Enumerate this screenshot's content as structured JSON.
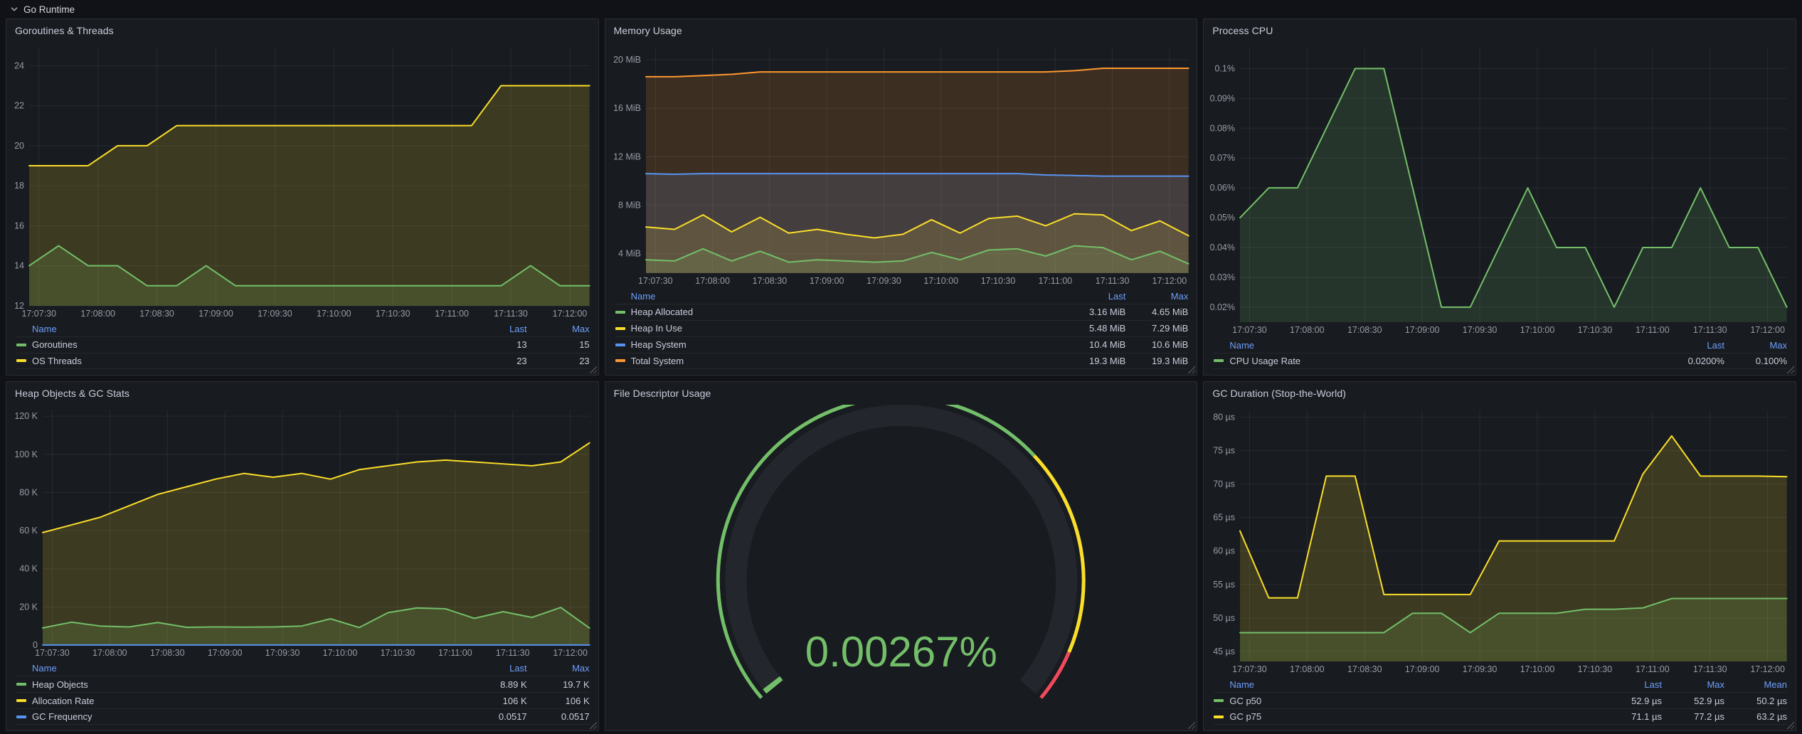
{
  "row": {
    "title": "Go Runtime"
  },
  "legend": {
    "name_header": "Name"
  },
  "colors": {
    "green": "#73bf69",
    "yellow": "#fade2a",
    "blue": "#5794f2",
    "orange": "#ff9830",
    "red": "#f2495c",
    "axis_text": "rgba(204,204,220,0.72)",
    "grid": "rgba(204,204,220,0.09)",
    "legend_header": "#6e9fff",
    "gauge_track": "#24262d",
    "panel_bg": "#181b1f",
    "page_bg": "#111217"
  },
  "panels": [
    {
      "title": "Goroutines & Threads",
      "legend_columns": [
        "Last",
        "Max"
      ],
      "chart_data": {
        "type": "line",
        "x_ticks": [
          "17:07:30",
          "17:08:00",
          "17:08:30",
          "17:09:00",
          "17:09:30",
          "17:10:00",
          "17:10:30",
          "17:11:00",
          "17:11:30",
          "17:12:00"
        ],
        "ylim": [
          12,
          24.9
        ],
        "yticks": [
          {
            "v": 12,
            "label": "12"
          },
          {
            "v": 14,
            "label": "14"
          },
          {
            "v": 16,
            "label": "16"
          },
          {
            "v": 18,
            "label": "18"
          },
          {
            "v": 20,
            "label": "20"
          },
          {
            "v": 22,
            "label": "22"
          },
          {
            "v": 24,
            "label": "24"
          }
        ],
        "series": [
          {
            "name": "Goroutines",
            "color": "green",
            "values": [
              14,
              15,
              14,
              14,
              13,
              13,
              14,
              13,
              13,
              13,
              13,
              13,
              13,
              13,
              13,
              13,
              13,
              14,
              13,
              13
            ],
            "legend_values": [
              "13",
              "15"
            ]
          },
          {
            "name": "OS Threads",
            "color": "yellow",
            "values": [
              19,
              19,
              19,
              20,
              20,
              21,
              21,
              21,
              21,
              21,
              21,
              21,
              21,
              21,
              21,
              21,
              23,
              23,
              23,
              23
            ],
            "legend_values": [
              "23",
              "23"
            ]
          }
        ]
      }
    },
    {
      "title": "Memory Usage",
      "legend_columns": [
        "Last",
        "Max"
      ],
      "chart_data": {
        "type": "line",
        "x_ticks": [
          "17:07:30",
          "17:08:00",
          "17:08:30",
          "17:09:00",
          "17:09:30",
          "17:10:00",
          "17:10:30",
          "17:11:00",
          "17:11:30",
          "17:12:00"
        ],
        "ylim": [
          2.4,
          21
        ],
        "yticks": [
          {
            "v": 4,
            "label": "4 MiB"
          },
          {
            "v": 8,
            "label": "8 MiB"
          },
          {
            "v": 12,
            "label": "12 MiB"
          },
          {
            "v": 16,
            "label": "16 MiB"
          },
          {
            "v": 20,
            "label": "20 MiB"
          }
        ],
        "series": [
          {
            "name": "Heap Allocated",
            "color": "green",
            "values": [
              3.5,
              3.4,
              4.4,
              3.4,
              4.2,
              3.3,
              3.5,
              3.4,
              3.3,
              3.4,
              4.1,
              3.5,
              4.3,
              4.4,
              3.8,
              4.65,
              4.5,
              3.5,
              4.2,
              3.16
            ],
            "legend_values": [
              "3.16 MiB",
              "4.65 MiB"
            ]
          },
          {
            "name": "Heap In Use",
            "color": "yellow",
            "values": [
              6.2,
              6.0,
              7.2,
              5.8,
              7.0,
              5.7,
              6.0,
              5.6,
              5.3,
              5.6,
              6.8,
              5.7,
              6.9,
              7.1,
              6.3,
              7.29,
              7.2,
              5.9,
              6.7,
              5.48
            ],
            "legend_values": [
              "5.48 MiB",
              "7.29 MiB"
            ]
          },
          {
            "name": "Heap System",
            "color": "blue",
            "values": [
              10.6,
              10.55,
              10.6,
              10.6,
              10.6,
              10.6,
              10.6,
              10.6,
              10.6,
              10.6,
              10.6,
              10.6,
              10.6,
              10.6,
              10.5,
              10.45,
              10.4,
              10.4,
              10.4,
              10.4
            ],
            "legend_values": [
              "10.4 MiB",
              "10.6 MiB"
            ]
          },
          {
            "name": "Total System",
            "color": "orange",
            "values": [
              18.6,
              18.6,
              18.7,
              18.8,
              19.0,
              19.0,
              19.0,
              19.0,
              19.0,
              19.0,
              19.0,
              19.0,
              19.0,
              19.0,
              19.0,
              19.1,
              19.3,
              19.3,
              19.3,
              19.3
            ],
            "legend_values": [
              "19.3 MiB",
              "19.3 MiB"
            ]
          }
        ]
      }
    },
    {
      "title": "Process CPU",
      "legend_columns": [
        "Last",
        "Max"
      ],
      "chart_data": {
        "type": "line",
        "x_ticks": [
          "17:07:30",
          "17:08:00",
          "17:08:30",
          "17:09:00",
          "17:09:30",
          "17:10:00",
          "17:10:30",
          "17:11:00",
          "17:11:30",
          "17:12:00"
        ],
        "ylim": [
          0.015,
          0.107
        ],
        "yticks": [
          {
            "v": 0.02,
            "label": "0.02%"
          },
          {
            "v": 0.03,
            "label": "0.03%"
          },
          {
            "v": 0.04,
            "label": "0.04%"
          },
          {
            "v": 0.05,
            "label": "0.05%"
          },
          {
            "v": 0.06,
            "label": "0.06%"
          },
          {
            "v": 0.07,
            "label": "0.07%"
          },
          {
            "v": 0.08,
            "label": "0.08%"
          },
          {
            "v": 0.09,
            "label": "0.09%"
          },
          {
            "v": 0.1,
            "label": "0.1%"
          }
        ],
        "series": [
          {
            "name": "CPU Usage Rate",
            "color": "green",
            "values": [
              0.05,
              0.06,
              0.06,
              0.08,
              0.1,
              0.1,
              0.06,
              0.02,
              0.02,
              0.04,
              0.06,
              0.04,
              0.04,
              0.02,
              0.04,
              0.04,
              0.06,
              0.04,
              0.04,
              0.02
            ],
            "legend_values": [
              "0.0200%",
              "0.100%"
            ]
          }
        ]
      }
    },
    {
      "title": "Heap Objects & GC Stats",
      "legend_columns": [
        "Last",
        "Max"
      ],
      "chart_data": {
        "type": "line",
        "x_ticks": [
          "17:07:30",
          "17:08:00",
          "17:08:30",
          "17:09:00",
          "17:09:30",
          "17:10:00",
          "17:10:30",
          "17:11:00",
          "17:11:30",
          "17:12:00"
        ],
        "ylim": [
          0,
          123
        ],
        "yticks": [
          {
            "v": 0,
            "label": "0"
          },
          {
            "v": 20,
            "label": "20 K"
          },
          {
            "v": 40,
            "label": "40 K"
          },
          {
            "v": 60,
            "label": "60 K"
          },
          {
            "v": 80,
            "label": "80 K"
          },
          {
            "v": 100,
            "label": "100 K"
          },
          {
            "v": 120,
            "label": "120 K"
          }
        ],
        "series": [
          {
            "name": "Heap Objects",
            "color": "green",
            "values": [
              9,
              12,
              10,
              9.5,
              11.8,
              9.3,
              9.5,
              9.4,
              9.5,
              10,
              13.8,
              9.2,
              17,
              19.5,
              19,
              14,
              17.5,
              14.5,
              19.7,
              8.89
            ],
            "legend_values": [
              "8.89 K",
              "19.7 K"
            ]
          },
          {
            "name": "Allocation Rate",
            "color": "yellow",
            "values": [
              59,
              63,
              67,
              73,
              79,
              83,
              87,
              90,
              88,
              90,
              87,
              92,
              94,
              96,
              97,
              96,
              95,
              94,
              96,
              106
            ],
            "legend_values": [
              "106 K",
              "106 K"
            ]
          },
          {
            "name": "GC Frequency",
            "color": "blue",
            "values": [
              0.05,
              0.05,
              0.05,
              0.05,
              0.05,
              0.05,
              0.05,
              0.05,
              0.05,
              0.05,
              0.05,
              0.05,
              0.05,
              0.05,
              0.05,
              0.05,
              0.05,
              0.05,
              0.05,
              0.05
            ],
            "legend_values": [
              "0.0517",
              "0.0517"
            ]
          }
        ]
      }
    },
    {
      "title": "File Descriptor Usage",
      "legend_columns": [],
      "chart_data": {
        "type": "gauge",
        "value_label": "0.00267%",
        "value_percent": 0.00267,
        "min": 0,
        "max": 100,
        "value_color": "green",
        "thresholds": [
          {
            "color": "green",
            "from_frac": 0
          },
          {
            "color": "yellow",
            "from_frac": 0.68
          },
          {
            "color": "red",
            "from_frac": 0.935
          }
        ]
      }
    },
    {
      "title": "GC Duration (Stop-the-World)",
      "legend_columns": [
        "Last",
        "Max",
        "Mean"
      ],
      "chart_data": {
        "type": "line",
        "x_ticks": [
          "17:07:30",
          "17:08:00",
          "17:08:30",
          "17:09:00",
          "17:09:30",
          "17:10:00",
          "17:10:30",
          "17:11:00",
          "17:11:30",
          "17:12:00"
        ],
        "ylim": [
          43.5,
          81
        ],
        "yticks": [
          {
            "v": 45,
            "label": "45 µs"
          },
          {
            "v": 50,
            "label": "50 µs"
          },
          {
            "v": 55,
            "label": "55 µs"
          },
          {
            "v": 60,
            "label": "60 µs"
          },
          {
            "v": 65,
            "label": "65 µs"
          },
          {
            "v": 70,
            "label": "70 µs"
          },
          {
            "v": 75,
            "label": "75 µs"
          },
          {
            "v": 80,
            "label": "80 µs"
          }
        ],
        "series": [
          {
            "name": "GC p50",
            "color": "green",
            "values": [
              47.8,
              47.8,
              47.8,
              47.8,
              47.8,
              47.8,
              50.7,
              50.7,
              47.8,
              50.7,
              50.7,
              50.7,
              51.3,
              51.3,
              51.5,
              52.9,
              52.9,
              52.9,
              52.9,
              52.9
            ],
            "legend_values": [
              "52.9 µs",
              "52.9 µs",
              "50.2 µs"
            ]
          },
          {
            "name": "GC p75",
            "color": "yellow",
            "values": [
              63,
              53,
              53,
              71.2,
              71.2,
              53.5,
              53.5,
              53.5,
              53.5,
              61.5,
              61.5,
              61.5,
              61.5,
              61.5,
              71.5,
              77.2,
              71.2,
              71.2,
              71.2,
              71.1
            ],
            "legend_values": [
              "71.1 µs",
              "77.2 µs",
              "63.2 µs"
            ]
          }
        ]
      }
    }
  ]
}
